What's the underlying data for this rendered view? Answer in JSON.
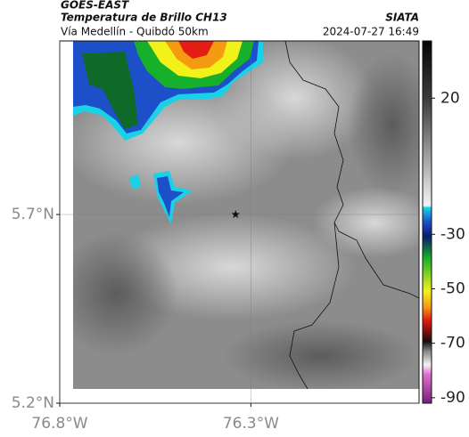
{
  "header": {
    "title": "GOES-EAST",
    "subtitle": "Temperatura de Brillo CH13",
    "route": "Vía Medellín - Quibdó 50km",
    "source": "SIATA",
    "timestamp": "2024-07-27 16:49"
  },
  "chart_data": {
    "type": "map",
    "xlim": [
      -76.8,
      -75.86
    ],
    "ylim": [
      5.2,
      6.16
    ],
    "xticks": [
      {
        "value": -76.8,
        "label": "76.8°W"
      },
      {
        "value": -76.3,
        "label": "76.3°W"
      }
    ],
    "yticks": [
      {
        "value": 5.2,
        "label": "5.2°N"
      },
      {
        "value": 5.7,
        "label": "5.7°N"
      }
    ],
    "grid": true,
    "marker": {
      "lon": -76.34,
      "lat": 5.7
    },
    "colorbar": {
      "lim": [
        -92,
        41
      ],
      "ticks": [
        20,
        -30,
        -50,
        -70,
        -90
      ]
    }
  }
}
